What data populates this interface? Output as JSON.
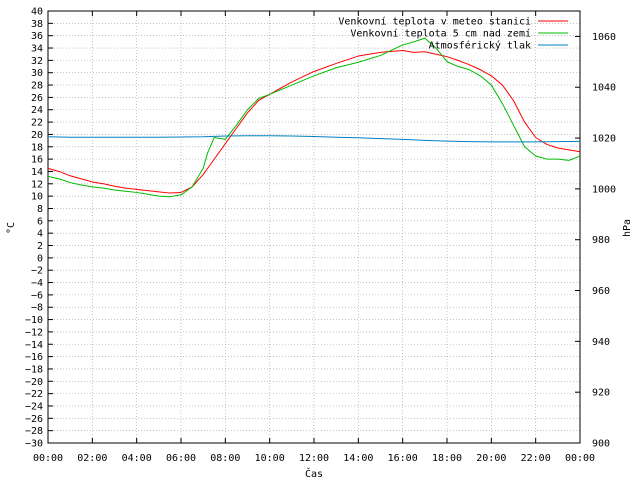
{
  "chart_data": {
    "type": "line",
    "title": "",
    "xlabel": "Čas",
    "ylabel_left": "°C",
    "ylabel_right": "hPa",
    "ylim_left": [
      -30,
      40
    ],
    "ylim_right": [
      900,
      1070
    ],
    "xlim_hours": [
      0,
      24
    ],
    "grid": true,
    "legend_position": "top-right",
    "x_tick_labels": [
      "00:00",
      "02:00",
      "04:00",
      "06:00",
      "08:00",
      "10:00",
      "12:00",
      "14:00",
      "16:00",
      "18:00",
      "20:00",
      "22:00",
      "00:00"
    ],
    "y_left_tick_labels": [
      "40",
      "38",
      "36",
      "34",
      "32",
      "30",
      "28",
      "26",
      "24",
      "22",
      "20",
      "18",
      "16",
      "14",
      "12",
      "10",
      "8",
      "6",
      "4",
      "2",
      "0",
      "-2",
      "-4",
      "-6",
      "-8",
      "-10",
      "-12",
      "-14",
      "-16",
      "-18",
      "-20",
      "-22",
      "-24",
      "-26",
      "-28",
      "-30"
    ],
    "y_right_tick_labels": [
      "1060",
      "1040",
      "1020",
      "1000",
      "980",
      "960",
      "940",
      "920",
      "900"
    ],
    "series": [
      {
        "name": "Venkovní teplota v meteo stanici",
        "axis": "left",
        "color": "#ff0000",
        "x_hours": [
          0,
          0.5,
          1,
          1.5,
          2,
          2.5,
          3,
          3.5,
          4,
          4.5,
          5,
          5.5,
          6,
          6.5,
          7,
          7.5,
          8,
          8.5,
          9,
          9.5,
          10,
          11,
          12,
          13,
          14,
          15,
          16,
          16.5,
          17,
          17.5,
          18,
          18.5,
          19,
          19.5,
          20,
          20.5,
          21,
          21.5,
          22,
          22.5,
          23,
          23.5,
          24
        ],
        "values": [
          14.5,
          14,
          13.3,
          12.8,
          12.3,
          12,
          11.6,
          11.3,
          11.1,
          10.9,
          10.7,
          10.5,
          10.6,
          11.5,
          13.5,
          16,
          18.5,
          21,
          23.5,
          25.5,
          26.5,
          28.5,
          30.2,
          31.5,
          32.7,
          33.3,
          33.6,
          33.3,
          33.4,
          33,
          32.6,
          32,
          31.3,
          30.5,
          29.5,
          28,
          25.5,
          22,
          19.5,
          18.4,
          17.8,
          17.5,
          17.2
        ]
      },
      {
        "name": "Venkovní teplota 5 cm nad zemí",
        "axis": "left",
        "color": "#00bb00",
        "x_hours": [
          0,
          0.5,
          1,
          1.5,
          2,
          2.5,
          3,
          3.5,
          4,
          4.5,
          5,
          5.5,
          6,
          6.5,
          7,
          7.2,
          7.5,
          8,
          8.5,
          9,
          9.5,
          10,
          11,
          12,
          13,
          14,
          15,
          16,
          16.5,
          17,
          17.5,
          18,
          18.5,
          19,
          19.5,
          20,
          20.5,
          21,
          21.5,
          22,
          22.5,
          23,
          23.5,
          24
        ],
        "values": [
          13.2,
          12.8,
          12.2,
          11.8,
          11.5,
          11.3,
          11,
          10.8,
          10.6,
          10.3,
          10,
          9.9,
          10.2,
          11.5,
          14.5,
          17,
          19.5,
          19.2,
          21.5,
          24,
          25.8,
          26.5,
          28,
          29.5,
          30.8,
          31.7,
          32.8,
          34.5,
          35,
          35.6,
          34,
          31.8,
          31,
          30.5,
          29.5,
          28,
          25,
          21.5,
          18,
          16.5,
          16,
          16,
          15.8,
          16.5
        ]
      },
      {
        "name": "Atmosférický tlak",
        "axis": "right",
        "color": "#0080c0",
        "x_hours": [
          0,
          1,
          2,
          3,
          4,
          5,
          6,
          7,
          8,
          9,
          10,
          11,
          12,
          13,
          14,
          15,
          16,
          17,
          18,
          19,
          20,
          21,
          22,
          23,
          24
        ],
        "values": [
          1020.5,
          1020.3,
          1020.3,
          1020.3,
          1020.3,
          1020.3,
          1020.4,
          1020.5,
          1020.8,
          1020.9,
          1020.9,
          1020.8,
          1020.6,
          1020.3,
          1020.1,
          1019.8,
          1019.5,
          1019.1,
          1018.8,
          1018.6,
          1018.5,
          1018.5,
          1018.5,
          1018.6,
          1018.7
        ]
      }
    ]
  }
}
